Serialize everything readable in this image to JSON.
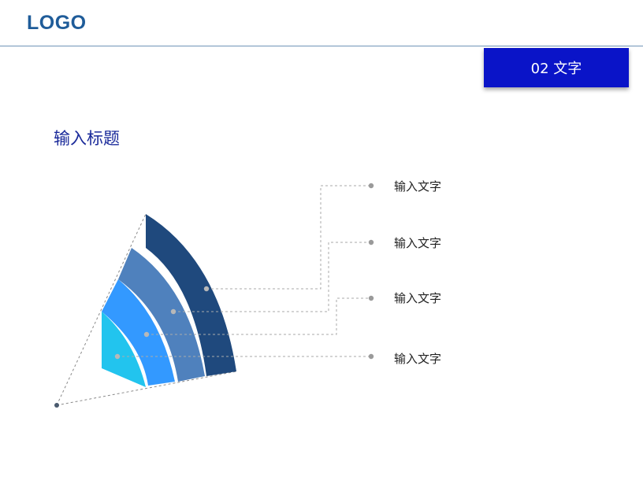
{
  "header": {
    "logo": "LOGO"
  },
  "section_badge": {
    "label": "02 文字"
  },
  "page_title": "输入标题",
  "items": [
    {
      "label": "输入文字",
      "color": "#1f497d"
    },
    {
      "label": "输入文字",
      "color": "#4f81bd"
    },
    {
      "label": "输入文字",
      "color": "#3399ff"
    },
    {
      "label": "输入文字",
      "color": "#22c4ee"
    }
  ],
  "colors": {
    "accent_blue": "#0a14c8",
    "logo": "#1f5c99",
    "title": "#1a2a9a",
    "connector": "#aaaaaa",
    "apex_dot": "#4a5a6e"
  }
}
